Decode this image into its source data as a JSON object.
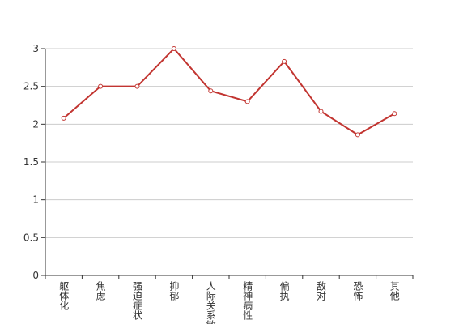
{
  "chart_data": {
    "type": "line",
    "categories": [
      "躯体化",
      "焦虑",
      "强迫症状",
      "抑郁",
      "人际关系敏感",
      "精神病性",
      "偏执",
      "敌对",
      "恐怖",
      "其他"
    ],
    "values": [
      2.08,
      2.5,
      2.5,
      3.0,
      2.44,
      2.3,
      2.83,
      2.17,
      1.86,
      2.14
    ],
    "color": "#c23531",
    "ylim": [
      0,
      3
    ],
    "yticks": [
      0,
      0.5,
      1,
      1.5,
      2,
      2.5,
      3
    ],
    "grid": true
  }
}
